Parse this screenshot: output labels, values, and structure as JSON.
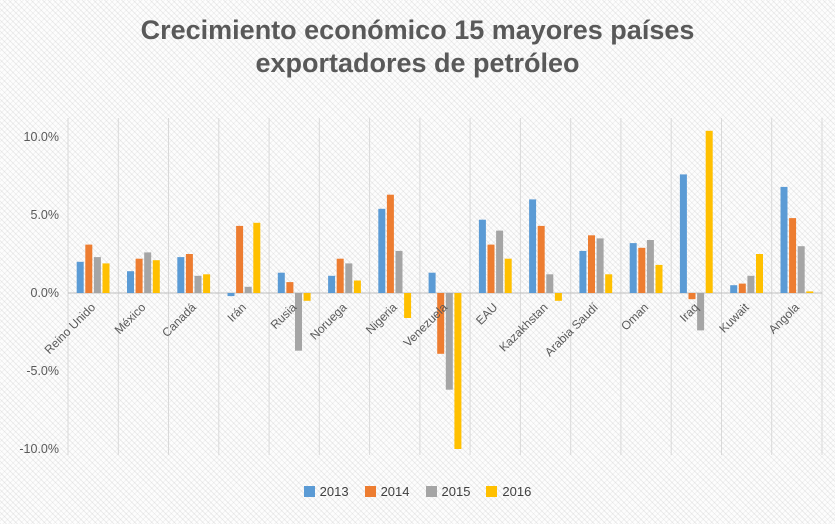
{
  "chart_data": {
    "type": "bar",
    "title": "Crecimiento económico 15 mayores países exportadores de petróleo",
    "categories": [
      "Reino Unido",
      "México",
      "Canadá",
      "Irán",
      "Rusia",
      "Noruega",
      "Nigeria",
      "Venezuela",
      "EAU",
      "Kazakhstan",
      "Arabia Saudí",
      "Oman",
      "Iraq",
      "Kuwait",
      "Angola"
    ],
    "series": [
      {
        "name": "2013",
        "color": "#5B9BD5",
        "values": [
          2.0,
          1.4,
          2.3,
          -0.2,
          1.3,
          1.1,
          5.4,
          1.3,
          4.7,
          6.0,
          2.7,
          3.2,
          7.6,
          0.5,
          6.8
        ]
      },
      {
        "name": "2014",
        "color": "#ED7D31",
        "values": [
          3.1,
          2.2,
          2.5,
          4.3,
          0.7,
          2.2,
          6.3,
          -3.9,
          3.1,
          4.3,
          3.7,
          2.9,
          -0.4,
          0.6,
          4.8
        ]
      },
      {
        "name": "2015",
        "color": "#A5A5A5",
        "values": [
          2.3,
          2.6,
          1.1,
          0.4,
          -3.7,
          1.9,
          2.7,
          -6.2,
          4.0,
          1.2,
          3.5,
          3.4,
          -2.4,
          1.1,
          3.0
        ]
      },
      {
        "name": "2016",
        "color": "#FFC000",
        "values": [
          1.9,
          2.1,
          1.2,
          4.5,
          -0.5,
          0.8,
          -1.6,
          -10.0,
          2.2,
          -0.5,
          1.2,
          1.8,
          10.4,
          2.5,
          0.1
        ]
      }
    ],
    "ylim": [
      -10,
      10
    ],
    "yticks": [
      {
        "value": 10,
        "label": "10.0%"
      },
      {
        "value": 5,
        "label": "5.0%"
      },
      {
        "value": 0,
        "label": "0.0%"
      },
      {
        "value": -5,
        "label": "-5.0%"
      },
      {
        "value": -10,
        "label": "-10.0%"
      }
    ],
    "grid": "vertical",
    "legend_position": "bottom",
    "colors": {
      "axis_text": "#595959",
      "gridline": "#d9d9d9",
      "zero_line": "#bfbfbf"
    }
  }
}
